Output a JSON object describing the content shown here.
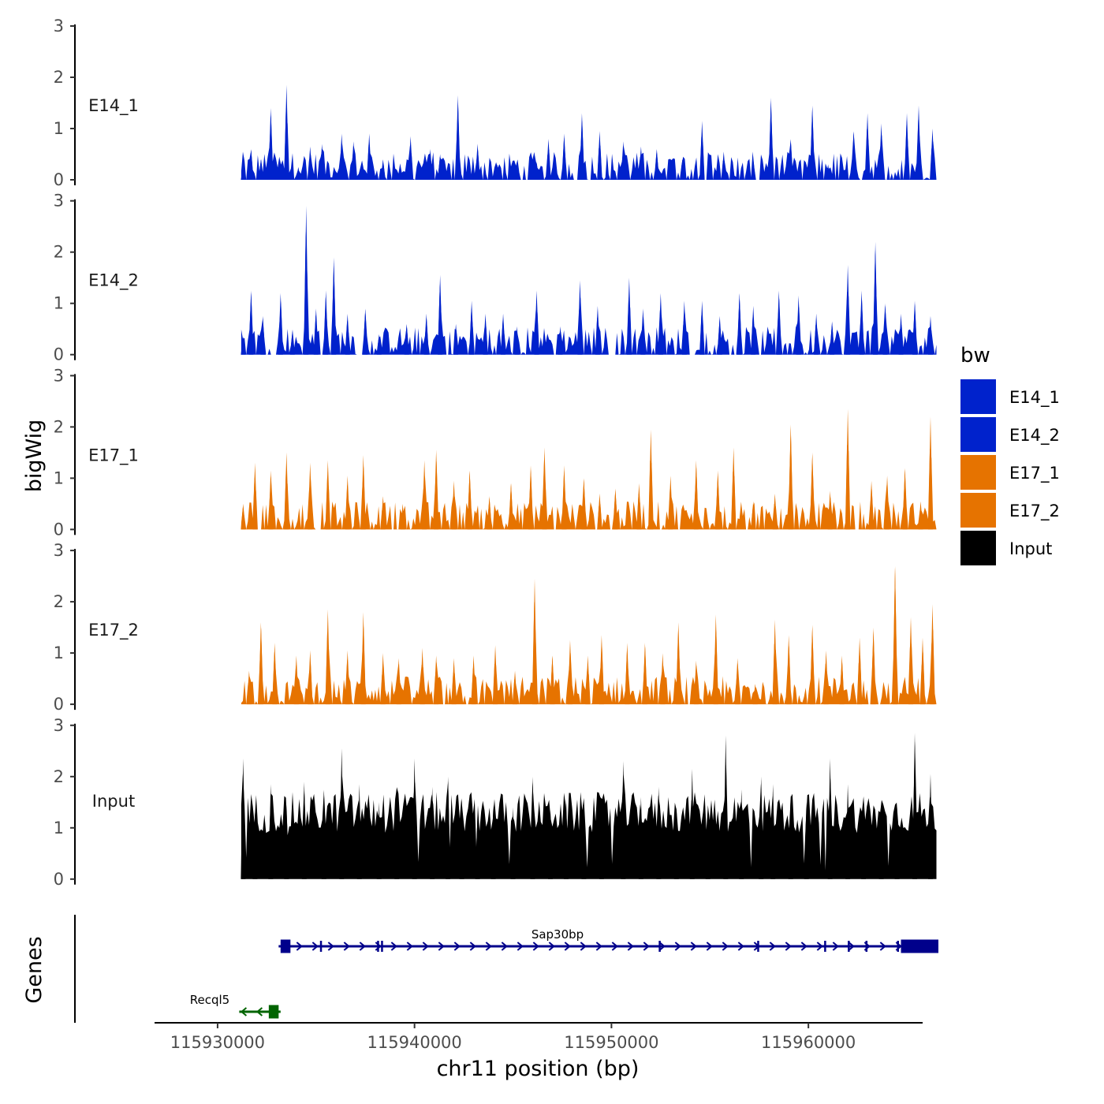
{
  "chart_data": {
    "type": "area",
    "title": "",
    "ylabel": "bigWig",
    "xlabel": "chr11 position (bp)",
    "genes_label": "Genes",
    "xlim": [
      115926800,
      115965800
    ],
    "ylim": [
      0,
      3
    ],
    "x_ticks": [
      115930000,
      115940000,
      115950000,
      115960000
    ],
    "x_tick_labels": [
      "115930000",
      "115940000",
      "115950000",
      "115960000"
    ],
    "y_ticks": [
      0,
      1,
      2,
      3
    ],
    "y_tick_labels": [
      "0",
      "1",
      "2",
      "3"
    ],
    "data_x_range": [
      115931200,
      115966500
    ],
    "legend": {
      "title": "bw",
      "entries": [
        {
          "name": "E14_1",
          "color": "#0022CC"
        },
        {
          "name": "E14_2",
          "color": "#0022CC"
        },
        {
          "name": "E17_1",
          "color": "#E67300"
        },
        {
          "name": "E17_2",
          "color": "#E67300"
        },
        {
          "name": "Input",
          "color": "#000000"
        }
      ]
    },
    "series": [
      {
        "name": "E14_1",
        "color": "#0022CC",
        "peaks": [
          [
            115931300,
            0.25
          ],
          [
            115931700,
            0.6
          ],
          [
            115932200,
            0.4
          ],
          [
            115932700,
            1.4
          ],
          [
            115933500,
            1.85
          ],
          [
            115934100,
            0.25
          ],
          [
            115934700,
            0.65
          ],
          [
            115935300,
            0.7
          ],
          [
            115936300,
            0.9
          ],
          [
            115936900,
            0.75
          ],
          [
            115937700,
            0.9
          ],
          [
            115938400,
            0.4
          ],
          [
            115939000,
            0.25
          ],
          [
            115939800,
            0.85
          ],
          [
            115940800,
            0.6
          ],
          [
            115941300,
            0.5
          ],
          [
            115942200,
            1.65
          ],
          [
            115943200,
            0.7
          ],
          [
            115944200,
            0.3
          ],
          [
            115945100,
            0.25
          ],
          [
            115946200,
            0.35
          ],
          [
            115946800,
            0.8
          ],
          [
            115947600,
            0.9
          ],
          [
            115948500,
            1.3
          ],
          [
            115949400,
            0.95
          ],
          [
            115950600,
            0.75
          ],
          [
            115951500,
            0.65
          ],
          [
            115952300,
            0.6
          ],
          [
            115953600,
            0.4
          ],
          [
            115954600,
            1.15
          ],
          [
            115955700,
            0.55
          ],
          [
            115957200,
            0.4
          ],
          [
            115958100,
            1.6
          ],
          [
            115959100,
            0.8
          ],
          [
            115960200,
            1.45
          ],
          [
            115961000,
            0.3
          ],
          [
            115962300,
            0.95
          ],
          [
            115963000,
            1.3
          ],
          [
            115963700,
            1.1
          ],
          [
            115965000,
            1.3
          ],
          [
            115965600,
            1.45
          ],
          [
            115966300,
            1.0
          ]
        ]
      },
      {
        "name": "E14_2",
        "color": "#0022CC",
        "peaks": [
          [
            115931300,
            0.35
          ],
          [
            115931700,
            1.25
          ],
          [
            115932300,
            0.75
          ],
          [
            115933200,
            1.2
          ],
          [
            115933800,
            0.45
          ],
          [
            115934500,
            2.9
          ],
          [
            115935000,
            0.9
          ],
          [
            115935500,
            1.25
          ],
          [
            115935900,
            1.9
          ],
          [
            115936600,
            0.8
          ],
          [
            115937500,
            0.9
          ],
          [
            115938200,
            0.4
          ],
          [
            115939600,
            0.6
          ],
          [
            115940600,
            0.8
          ],
          [
            115941300,
            1.55
          ],
          [
            115942100,
            0.6
          ],
          [
            115942900,
            1.05
          ],
          [
            115943600,
            0.8
          ],
          [
            115944500,
            0.8
          ],
          [
            115945200,
            0.55
          ],
          [
            115946200,
            1.25
          ],
          [
            115947400,
            0.55
          ],
          [
            115948400,
            1.45
          ],
          [
            115949300,
            0.95
          ],
          [
            115950900,
            1.5
          ],
          [
            115951600,
            0.9
          ],
          [
            115952500,
            1.2
          ],
          [
            115953700,
            1.05
          ],
          [
            115954600,
            1.05
          ],
          [
            115955500,
            0.75
          ],
          [
            115956500,
            1.2
          ],
          [
            115957200,
            0.95
          ],
          [
            115958500,
            1.25
          ],
          [
            115959500,
            1.15
          ],
          [
            115960400,
            0.8
          ],
          [
            115961200,
            0.65
          ],
          [
            115962000,
            1.75
          ],
          [
            115962700,
            1.25
          ],
          [
            115963400,
            2.2
          ],
          [
            115963900,
            1.0
          ],
          [
            115964700,
            0.8
          ],
          [
            115965400,
            1.05
          ],
          [
            115966200,
            0.75
          ]
        ]
      },
      {
        "name": "E17_1",
        "color": "#E67300",
        "peaks": [
          [
            115931300,
            0.5
          ],
          [
            115931900,
            1.3
          ],
          [
            115932700,
            1.15
          ],
          [
            115933500,
            1.5
          ],
          [
            115934700,
            1.3
          ],
          [
            115935600,
            1.35
          ],
          [
            115936600,
            1.05
          ],
          [
            115937400,
            1.45
          ],
          [
            115938400,
            0.65
          ],
          [
            115939400,
            0.5
          ],
          [
            115940500,
            1.35
          ],
          [
            115941100,
            1.55
          ],
          [
            115942000,
            0.95
          ],
          [
            115942800,
            1.15
          ],
          [
            115943800,
            0.65
          ],
          [
            115944900,
            0.9
          ],
          [
            115945900,
            1.25
          ],
          [
            115946600,
            1.6
          ],
          [
            115947600,
            1.25
          ],
          [
            115948600,
            1.0
          ],
          [
            115949400,
            0.7
          ],
          [
            115950200,
            0.8
          ],
          [
            115951400,
            0.9
          ],
          [
            115952000,
            1.95
          ],
          [
            115953000,
            1.05
          ],
          [
            115954300,
            1.35
          ],
          [
            115955400,
            1.15
          ],
          [
            115956200,
            1.6
          ],
          [
            115957200,
            0.55
          ],
          [
            115958300,
            0.7
          ],
          [
            115959100,
            2.05
          ],
          [
            115960200,
            1.5
          ],
          [
            115961100,
            0.75
          ],
          [
            115962000,
            2.35
          ],
          [
            115963200,
            0.95
          ],
          [
            115964000,
            1.05
          ],
          [
            115964900,
            1.2
          ],
          [
            115965700,
            0.55
          ],
          [
            115966200,
            2.2
          ]
        ]
      },
      {
        "name": "E17_2",
        "color": "#E67300",
        "peaks": [
          [
            115931600,
            0.65
          ],
          [
            115932200,
            1.6
          ],
          [
            115932900,
            1.2
          ],
          [
            115934000,
            0.95
          ],
          [
            115934700,
            1.05
          ],
          [
            115935600,
            1.85
          ],
          [
            115936600,
            1.05
          ],
          [
            115937400,
            1.8
          ],
          [
            115938400,
            1.0
          ],
          [
            115939200,
            0.9
          ],
          [
            115940400,
            1.1
          ],
          [
            115941100,
            0.95
          ],
          [
            115942000,
            0.9
          ],
          [
            115943000,
            0.95
          ],
          [
            115944100,
            1.15
          ],
          [
            115945100,
            0.65
          ],
          [
            115946100,
            2.45
          ],
          [
            115947000,
            0.95
          ],
          [
            115947900,
            1.25
          ],
          [
            115948800,
            0.95
          ],
          [
            115949500,
            1.35
          ],
          [
            115950800,
            1.2
          ],
          [
            115951700,
            1.2
          ],
          [
            115952600,
            1.0
          ],
          [
            115953400,
            1.6
          ],
          [
            115954300,
            0.85
          ],
          [
            115955300,
            1.75
          ],
          [
            115956400,
            0.9
          ],
          [
            115957300,
            0.4
          ],
          [
            115958300,
            1.65
          ],
          [
            115959000,
            1.35
          ],
          [
            115960200,
            1.55
          ],
          [
            115960900,
            1.05
          ],
          [
            115961700,
            0.95
          ],
          [
            115962600,
            1.3
          ],
          [
            115963300,
            1.5
          ],
          [
            115964400,
            2.7
          ],
          [
            115965200,
            1.7
          ],
          [
            115965800,
            1.3
          ],
          [
            115966300,
            1.95
          ]
        ]
      },
      {
        "name": "Input",
        "color": "#000000",
        "peaks": [
          [
            115931300,
            2.35
          ],
          [
            115931900,
            1.3
          ],
          [
            115932700,
            1.85
          ],
          [
            115933500,
            1.45
          ],
          [
            115934400,
            1.9
          ],
          [
            115935400,
            1.75
          ],
          [
            115936300,
            2.55
          ],
          [
            115937200,
            1.85
          ],
          [
            115938200,
            1.5
          ],
          [
            115939100,
            1.8
          ],
          [
            115940000,
            2.35
          ],
          [
            115940900,
            1.8
          ],
          [
            115941700,
            2.0
          ],
          [
            115942400,
            1.55
          ],
          [
            115943200,
            1.25
          ],
          [
            115944000,
            1.45
          ],
          [
            115945000,
            1.4
          ],
          [
            115946000,
            2.0
          ],
          [
            115946900,
            1.35
          ],
          [
            115947700,
            1.55
          ],
          [
            115948600,
            1.35
          ],
          [
            115949500,
            1.15
          ],
          [
            115950600,
            2.3
          ],
          [
            115951500,
            1.6
          ],
          [
            115952400,
            1.8
          ],
          [
            115953300,
            1.4
          ],
          [
            115954100,
            2.15
          ],
          [
            115954900,
            1.45
          ],
          [
            115955800,
            2.8
          ],
          [
            115956600,
            1.75
          ],
          [
            115957600,
            2.0
          ],
          [
            115958200,
            1.85
          ],
          [
            115959100,
            1.65
          ],
          [
            115959900,
            1.5
          ],
          [
            115961100,
            2.35
          ],
          [
            115962000,
            1.85
          ],
          [
            115962800,
            1.45
          ],
          [
            115963700,
            1.55
          ],
          [
            115964500,
            1.4
          ],
          [
            115965400,
            2.85
          ],
          [
            115966200,
            2.05
          ]
        ]
      }
    ],
    "genes": [
      {
        "name": "Sap30bp",
        "strand": "+",
        "start": 115933100,
        "end": 115966600,
        "exons": [
          [
            115933200,
            115933700
          ],
          [
            115935200,
            115935300
          ],
          [
            115938100,
            115938200
          ],
          [
            115938300,
            115938400
          ],
          [
            115952400,
            115952500
          ],
          [
            115957400,
            115957500
          ],
          [
            115960800,
            115960900
          ],
          [
            115962000,
            115962100
          ],
          [
            115962900,
            115963000
          ],
          [
            115964500,
            115964600
          ],
          [
            115964700,
            115966600
          ]
        ]
      },
      {
        "name": "Recql5",
        "strand": "-",
        "start": 115931100,
        "end": 115933200,
        "exons": [
          [
            115932600,
            115933100
          ]
        ]
      }
    ]
  }
}
